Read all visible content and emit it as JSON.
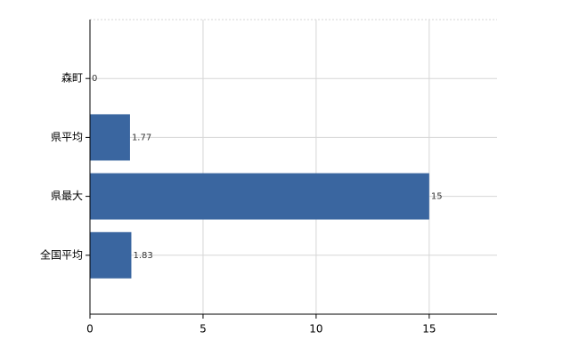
{
  "chart_data": {
    "type": "bar",
    "orientation": "horizontal",
    "categories": [
      "森町",
      "県平均",
      "県最大",
      "全国平均"
    ],
    "values": [
      0,
      1.77,
      15,
      1.83
    ],
    "color": "#3a66a0",
    "xlim": [
      0,
      18
    ],
    "xticks": [
      0,
      5,
      10,
      15
    ],
    "grid": true
  }
}
